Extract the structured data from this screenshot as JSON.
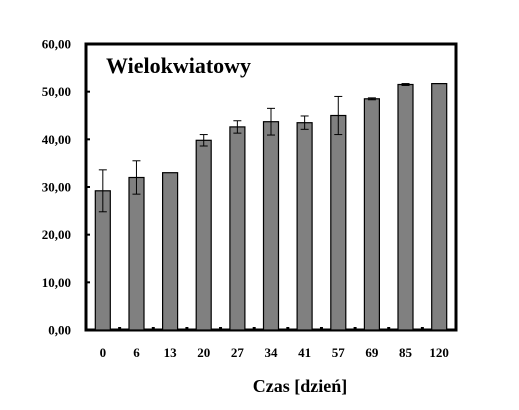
{
  "chart_data": {
    "type": "bar",
    "title": "Wielokwiatowy",
    "xlabel": "Czas [dzień]",
    "ylabel": "",
    "ylim": [
      0,
      60
    ],
    "yticks": [
      0,
      10,
      20,
      30,
      40,
      50,
      60
    ],
    "ytick_labels": [
      "0,00",
      "10,00",
      "20,00",
      "30,00",
      "40,00",
      "50,00",
      "60,00"
    ],
    "categories": [
      "0",
      "6",
      "13",
      "20",
      "27",
      "34",
      "41",
      "57",
      "69",
      "85",
      "120"
    ],
    "values": [
      29.2,
      32.0,
      33.0,
      39.8,
      42.6,
      43.7,
      43.5,
      45.0,
      48.5,
      51.5,
      51.7
    ],
    "errors": [
      4.4,
      3.5,
      0,
      1.2,
      1.3,
      2.8,
      1.4,
      4.0,
      0.2,
      0.2,
      0
    ],
    "grid": false,
    "colors": {
      "bar": "#808080",
      "edge": "#000000",
      "axes": "#000000"
    }
  }
}
